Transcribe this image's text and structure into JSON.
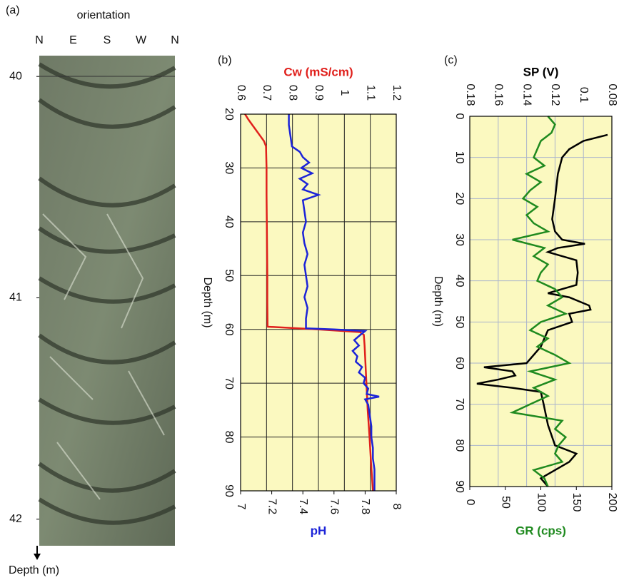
{
  "chart_data": [
    {
      "type": "image",
      "panel": "(a)",
      "xlabel": "orientation",
      "categories": [
        "N",
        "E",
        "S",
        "W",
        "N"
      ],
      "ylim": [
        39.906,
        42.12
      ],
      "yticks": [
        40,
        41,
        42
      ],
      "ylabel": "Depth (m)"
    },
    {
      "type": "rotated_line",
      "panel": "(b)",
      "xlabel": "Cw (mS/cm)",
      "xlim": [
        0.6,
        1.2
      ],
      "xticks": [
        0.6,
        0.7,
        0.8,
        0.9,
        1,
        1.1,
        1.2
      ],
      "x2label": "pH",
      "x2lim": [
        7,
        8
      ],
      "x2ticks": [
        7,
        7.2,
        7.4,
        7.6,
        7.8,
        8
      ],
      "ylabel": "Depth (m)",
      "ylim": [
        20,
        90
      ],
      "yticks": [
        20,
        30,
        40,
        50,
        60,
        70,
        80,
        90
      ],
      "grid_color": "#222",
      "background": "#fbf9c0",
      "series": [
        {
          "axis": "x",
          "color": "#e0201c",
          "depth": [
            20,
            21,
            22,
            23,
            24,
            25,
            26,
            30,
            35,
            40,
            45,
            50,
            55,
            59.5,
            60,
            60.5,
            61,
            63,
            65,
            70,
            75,
            80,
            85,
            90
          ],
          "values": [
            0.617,
            0.63,
            0.645,
            0.66,
            0.675,
            0.69,
            0.698,
            0.7,
            0.7,
            0.701,
            0.702,
            0.703,
            0.703,
            0.704,
            0.9,
            1.06,
            1.075,
            1.078,
            1.08,
            1.085,
            1.09,
            1.097,
            1.103,
            1.11
          ]
        },
        {
          "axis": "x2",
          "color": "#1c24d8",
          "depth": [
            20,
            22,
            24,
            26,
            27,
            28,
            29,
            30,
            31,
            32,
            33,
            34,
            35,
            36,
            38,
            40,
            42,
            44,
            46,
            48,
            50,
            52,
            54,
            56,
            58,
            59.8,
            60,
            60.3,
            61,
            62,
            63,
            64,
            65,
            66,
            67,
            68,
            69,
            70,
            71,
            72,
            72.5,
            73,
            74,
            76,
            78,
            80,
            82,
            84,
            86,
            88,
            90
          ],
          "values": [
            7.31,
            7.31,
            7.32,
            7.33,
            7.38,
            7.4,
            7.44,
            7.39,
            7.46,
            7.38,
            7.43,
            7.4,
            7.5,
            7.4,
            7.41,
            7.42,
            7.4,
            7.41,
            7.43,
            7.41,
            7.42,
            7.43,
            7.41,
            7.43,
            7.42,
            7.42,
            7.6,
            7.8,
            7.77,
            7.73,
            7.76,
            7.72,
            7.75,
            7.74,
            7.78,
            7.76,
            7.8,
            7.79,
            7.82,
            7.81,
            7.89,
            7.8,
            7.82,
            7.83,
            7.84,
            7.84,
            7.85,
            7.85,
            7.86,
            7.86,
            7.86
          ]
        }
      ]
    },
    {
      "type": "rotated_line",
      "panel": "(c)",
      "xlabel": "SP (V)",
      "xlim": [
        0.18,
        0.08
      ],
      "xticks": [
        0.18,
        0.16,
        0.14,
        0.12,
        0.1,
        0.08
      ],
      "x2label": "GR (cps)",
      "x2lim": [
        0,
        200
      ],
      "x2ticks": [
        0,
        50,
        100,
        150,
        200
      ],
      "ylabel": "Depth (m)",
      "ylim": [
        0,
        90
      ],
      "yticks": [
        0,
        10,
        20,
        30,
        40,
        50,
        60,
        70,
        80,
        90
      ],
      "grid_color": "#aab4cc",
      "background": "#fbf9c0",
      "series": [
        {
          "axis": "x",
          "color": "#000000",
          "depth": [
            4.5,
            6,
            8,
            10,
            14,
            20,
            25,
            28,
            30,
            31,
            32,
            33,
            35,
            38,
            41,
            43,
            44,
            46,
            47,
            48,
            50,
            52,
            56,
            60,
            61,
            62,
            63,
            64,
            65,
            66,
            67,
            70,
            75,
            80,
            82,
            84,
            86,
            88,
            90
          ],
          "values": [
            0.083,
            0.1,
            0.11,
            0.115,
            0.118,
            0.12,
            0.122,
            0.12,
            0.115,
            0.099,
            0.118,
            0.125,
            0.105,
            0.104,
            0.105,
            0.125,
            0.11,
            0.096,
            0.095,
            0.11,
            0.108,
            0.125,
            0.13,
            0.14,
            0.17,
            0.15,
            0.148,
            0.16,
            0.175,
            0.15,
            0.13,
            0.128,
            0.125,
            0.12,
            0.105,
            0.11,
            0.12,
            0.13,
            0.125
          ]
        },
        {
          "axis": "x2",
          "color": "#1f8a1f",
          "depth": [
            0,
            2,
            4,
            6,
            8,
            10,
            12,
            14,
            16,
            18,
            20,
            22,
            24,
            26,
            28,
            30,
            32,
            34,
            36,
            38,
            40,
            42,
            44,
            46,
            48,
            50,
            52,
            54,
            56,
            58,
            60,
            62,
            64,
            66,
            68,
            70,
            72,
            74,
            76,
            78,
            80,
            82,
            84,
            86,
            88,
            90
          ],
          "values": [
            110,
            120,
            115,
            100,
            95,
            90,
            105,
            80,
            100,
            85,
            75,
            95,
            80,
            90,
            110,
            60,
            105,
            90,
            110,
            100,
            95,
            120,
            130,
            110,
            135,
            100,
            85,
            110,
            95,
            120,
            140,
            85,
            120,
            90,
            110,
            85,
            60,
            130,
            120,
            135,
            125,
            120,
            130,
            90,
            105,
            110
          ]
        }
      ]
    }
  ]
}
